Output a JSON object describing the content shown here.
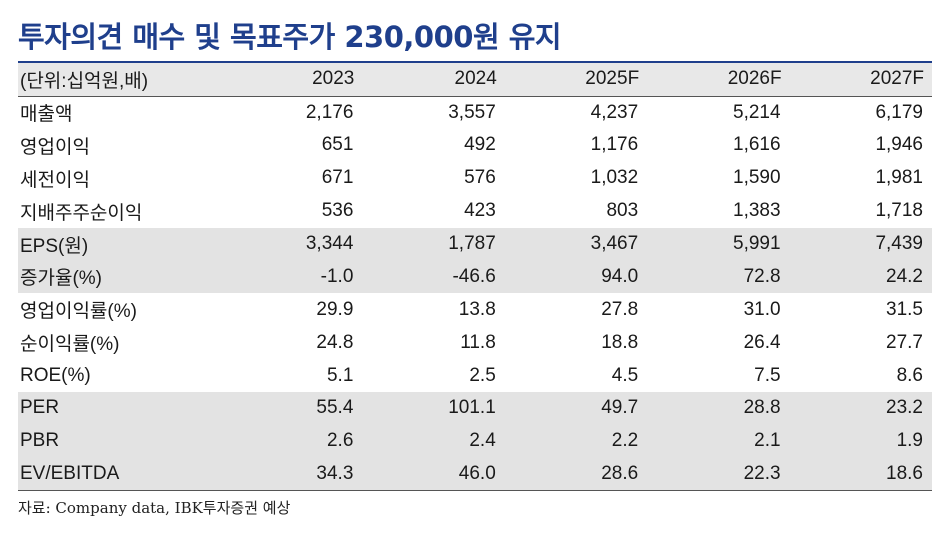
{
  "title": "투자의견 매수 및 목표주가 230,000원 유지",
  "table": {
    "header": [
      "(단위:십억원,배)",
      "2023",
      "2024",
      "2025F",
      "2026F",
      "2027F"
    ],
    "rows": [
      {
        "label": "매출액",
        "values": [
          "2,176",
          "3,557",
          "4,237",
          "5,214",
          "6,179"
        ],
        "shaded": false
      },
      {
        "label": "영업이익",
        "values": [
          "651",
          "492",
          "1,176",
          "1,616",
          "1,946"
        ],
        "shaded": false
      },
      {
        "label": "세전이익",
        "values": [
          "671",
          "576",
          "1,032",
          "1,590",
          "1,981"
        ],
        "shaded": false
      },
      {
        "label": "지배주주순이익",
        "values": [
          "536",
          "423",
          "803",
          "1,383",
          "1,718"
        ],
        "shaded": false
      },
      {
        "label": "EPS(원)",
        "values": [
          "3,344",
          "1,787",
          "3,467",
          "5,991",
          "7,439"
        ],
        "shaded": true
      },
      {
        "label": "증가율(%)",
        "values": [
          "-1.0",
          "-46.6",
          "94.0",
          "72.8",
          "24.2"
        ],
        "shaded": true
      },
      {
        "label": "영업이익률(%)",
        "values": [
          "29.9",
          "13.8",
          "27.8",
          "31.0",
          "31.5"
        ],
        "shaded": false
      },
      {
        "label": "순이익률(%)",
        "values": [
          "24.8",
          "11.8",
          "18.8",
          "26.4",
          "27.7"
        ],
        "shaded": false
      },
      {
        "label": "ROE(%)",
        "values": [
          "5.1",
          "2.5",
          "4.5",
          "7.5",
          "8.6"
        ],
        "shaded": false
      },
      {
        "label": "PER",
        "values": [
          "55.4",
          "101.1",
          "49.7",
          "28.8",
          "23.2"
        ],
        "shaded": true
      },
      {
        "label": "PBR",
        "values": [
          "2.6",
          "2.4",
          "2.2",
          "2.1",
          "1.9"
        ],
        "shaded": true
      },
      {
        "label": "EV/EBITDA",
        "values": [
          "34.3",
          "46.0",
          "28.6",
          "22.3",
          "18.6"
        ],
        "shaded": true
      }
    ]
  },
  "source": "자료: Company data, IBK투자증권 예상"
}
